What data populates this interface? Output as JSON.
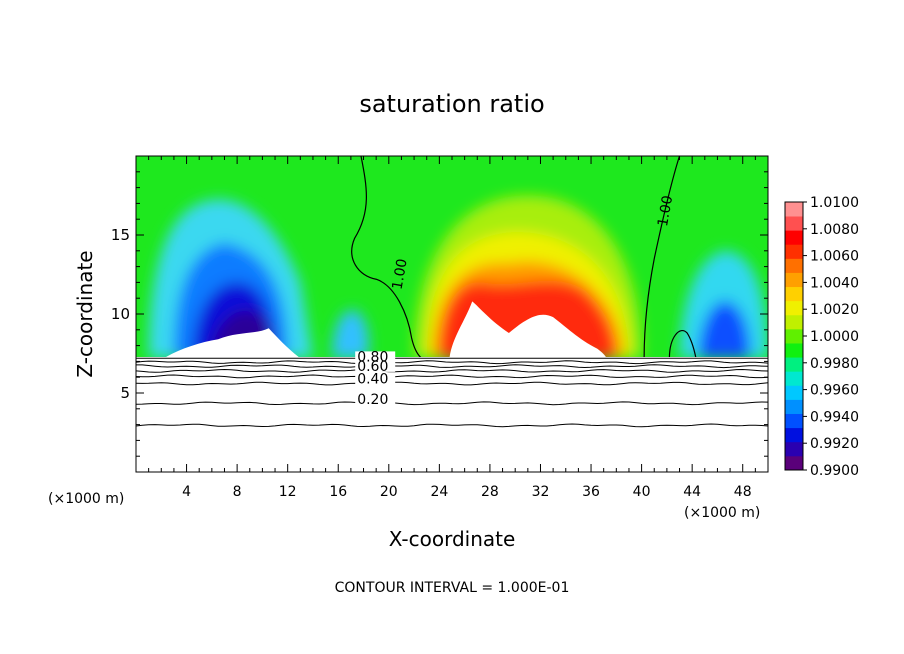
{
  "chart_data": {
    "type": "heatmap",
    "title": "saturation ratio",
    "xlabel": "X-coordinate",
    "ylabel": "Z-coordinate",
    "x_unit_label": "(×1000 m)",
    "z_unit_label": "(×1000 m)",
    "footer": "CONTOUR INTERVAL = 1.000E-01",
    "xlim": [
      0,
      50
    ],
    "ylim": [
      0,
      20
    ],
    "x_ticks": [
      4,
      8,
      12,
      16,
      20,
      24,
      28,
      32,
      36,
      40,
      44,
      48
    ],
    "y_ticks": [
      5,
      10,
      15
    ],
    "colorbar": {
      "levels": [
        "0.9900",
        "0.9920",
        "0.9940",
        "0.9960",
        "0.9980",
        "1.0000",
        "1.0020",
        "1.0040",
        "1.0060",
        "1.0080",
        "1.0100"
      ],
      "min": 0.99,
      "max": 1.01,
      "colors": [
        "#5a007a",
        "#2a00b0",
        "#0010e0",
        "#0050ff",
        "#0090ff",
        "#00c8ff",
        "#00e8d0",
        "#00f080",
        "#10f010",
        "#60f000",
        "#c0f000",
        "#f0f000",
        "#ffd000",
        "#ffa000",
        "#ff7000",
        "#ff3000",
        "#ff0000",
        "#ff5050",
        "#ff9090"
      ]
    },
    "contour_labels": [
      {
        "text": "1.00",
        "x": 21.0,
        "z": 11.5
      },
      {
        "text": "1.00",
        "x": 42.0,
        "z": 15.5
      },
      {
        "text": "0.80",
        "x": 17.5,
        "z": 7.0
      },
      {
        "text": "0.60",
        "x": 17.5,
        "z": 6.4
      },
      {
        "text": "0.40",
        "x": 17.5,
        "z": 5.6
      },
      {
        "text": "0.20",
        "x": 17.5,
        "z": 4.3
      }
    ],
    "regions": {
      "terrain_top_z": 7.2,
      "dry_region_lines_z": [
        6.95,
        6.7,
        6.4,
        6.05,
        5.6,
        4.35,
        2.95
      ]
    }
  }
}
